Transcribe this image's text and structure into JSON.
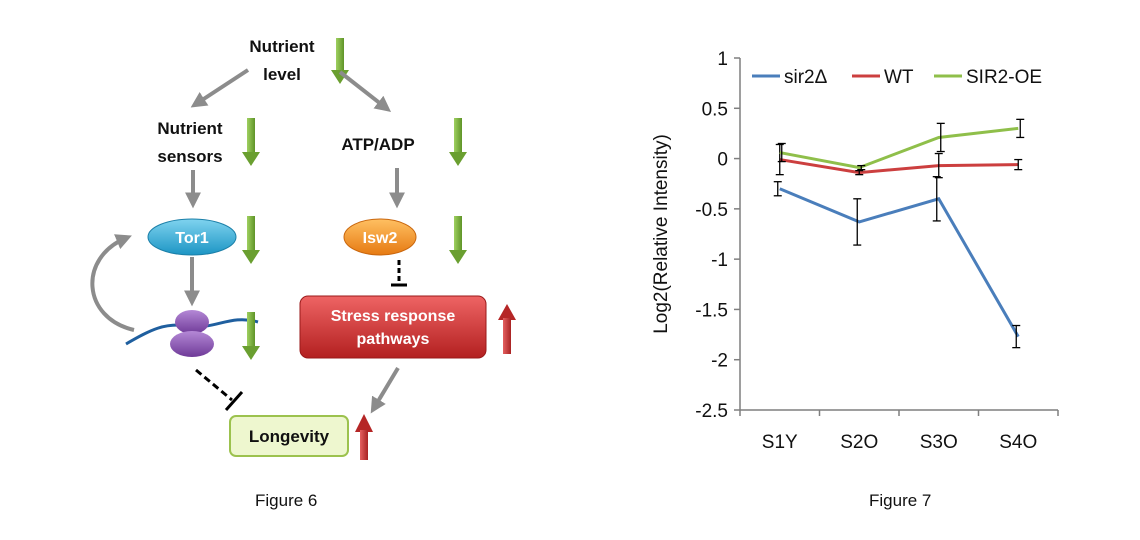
{
  "figure6": {
    "caption": "Figure 6",
    "nodes": {
      "nutrient_level": [
        "Nutrient",
        "level"
      ],
      "nutrient_sensors": [
        "Nutrient",
        "sensors"
      ],
      "atp_adp": "ATP/ADP",
      "tor1": "Tor1",
      "isw2": "Isw2",
      "stress_response": [
        "Stress response",
        "pathways"
      ],
      "longevity": "Longevity"
    },
    "colors": {
      "gray_arrow": "#8c8c8c",
      "down_arrow_green": "#7fae3c",
      "up_arrow_red": "#c0392b",
      "tor1_fill": "#2aa9d2",
      "isw2_fill": "#f0901e",
      "stress_fill": "#cc2e2e",
      "longevity_fill": "#eef7cf",
      "longevity_border": "#9cc24e",
      "ribosome": "#8a4fb0",
      "dna_line": "#1f5f9f"
    }
  },
  "figure7": {
    "caption": "Figure 7",
    "chart_data": {
      "type": "line",
      "categories": [
        "S1Y",
        "S2O",
        "S3O",
        "S4O"
      ],
      "ylabel": "Log2(Relative Intensity)",
      "xlabel": "",
      "ylim": [
        -2.5,
        1
      ],
      "yticks": [
        1,
        0.5,
        0,
        -0.5,
        -1,
        -1.5,
        -2,
        -2.5
      ],
      "ytick_labels": [
        "1",
        "0.5",
        "0",
        "-0.5",
        "-1",
        "-1.5",
        "-2",
        "-2.5"
      ],
      "grid": false,
      "legend_position": "top",
      "series": [
        {
          "name": "sir2Δ",
          "color": "#4a7ebb",
          "values": [
            -0.3,
            -0.63,
            -0.4,
            -1.77
          ],
          "errors": [
            0.07,
            0.23,
            0.22,
            0.11
          ]
        },
        {
          "name": "WT",
          "color": "#cc3f3f",
          "values": [
            -0.01,
            -0.14,
            -0.07,
            -0.06
          ],
          "errors": [
            0.15,
            0.02,
            0.12,
            0.05
          ]
        },
        {
          "name": "SIR2-OE",
          "color": "#8fbf4a",
          "values": [
            0.06,
            -0.09,
            0.21,
            0.3
          ],
          "errors": [
            0.09,
            0.02,
            0.14,
            0.09
          ]
        }
      ]
    }
  }
}
